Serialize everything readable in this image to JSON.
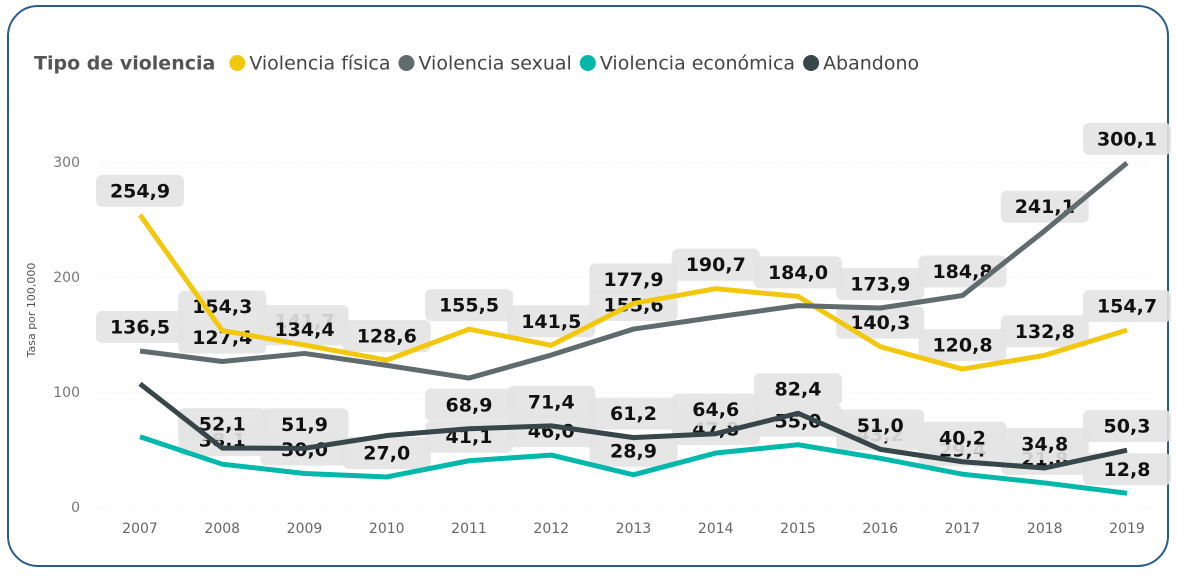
{
  "chart_data": {
    "type": "line",
    "legend_title": "Tipo de violencia",
    "y_axis_label": "Tasa por 100,000",
    "categories": [
      "2007",
      "2008",
      "2009",
      "2010",
      "2011",
      "2012",
      "2013",
      "2014",
      "2015",
      "2016",
      "2017",
      "2018",
      "2019"
    ],
    "ylim": [
      0,
      320
    ],
    "yticks": [
      0,
      100,
      200,
      300
    ],
    "grid": true,
    "series": [
      {
        "name": "Violencia física",
        "color": "#F2C80F",
        "values": [
          254.9,
          154.3,
          141.7,
          128.6,
          155.5,
          141.5,
          177.9,
          190.7,
          184.0,
          140.3,
          120.8,
          132.8,
          154.7
        ],
        "value_labels": [
          "254,9",
          "154,3",
          "141,7",
          "128,6",
          "155,5",
          "141,5",
          "177,9",
          "190,7",
          "184,0",
          "140,3",
          "120,8",
          "132,8",
          "154,7"
        ]
      },
      {
        "name": "Violencia sexual",
        "color": "#5F6B6D",
        "values": [
          136.5,
          127.4,
          134.4,
          124,
          113,
          133,
          155.6,
          166,
          176,
          173.9,
          184.8,
          241.1,
          300.1
        ],
        "value_labels": [
          "136,5",
          "127,4",
          "134,4",
          null,
          null,
          null,
          "155,6",
          null,
          null,
          "173,9",
          "184,8",
          "241,1",
          "300,1"
        ]
      },
      {
        "name": "Violencia económica",
        "color": "#01B8AA",
        "values": [
          62,
          38.1,
          30.0,
          27.0,
          41.1,
          46.0,
          28.9,
          47.8,
          55.0,
          43.2,
          29.4,
          21.8,
          12.8
        ],
        "value_labels": [
          null,
          "38,1",
          "30,0",
          "27,0",
          "41,1",
          "46,0",
          "28,9",
          "47,8",
          "55,0",
          "43,2",
          "29,4",
          "21,8",
          "12,8"
        ]
      },
      {
        "name": "Abandono",
        "color": "#374649",
        "values": [
          108,
          52.1,
          51.9,
          63,
          68.9,
          71.4,
          61.2,
          64.6,
          82.4,
          51.0,
          40.2,
          34.8,
          50.3
        ],
        "value_labels": [
          null,
          "52,1",
          "51,9",
          null,
          "68,9",
          "71,4",
          "61,2",
          "64,6",
          "82,4",
          "51,0",
          "40,2",
          "34,8",
          "50,3"
        ]
      }
    ]
  }
}
